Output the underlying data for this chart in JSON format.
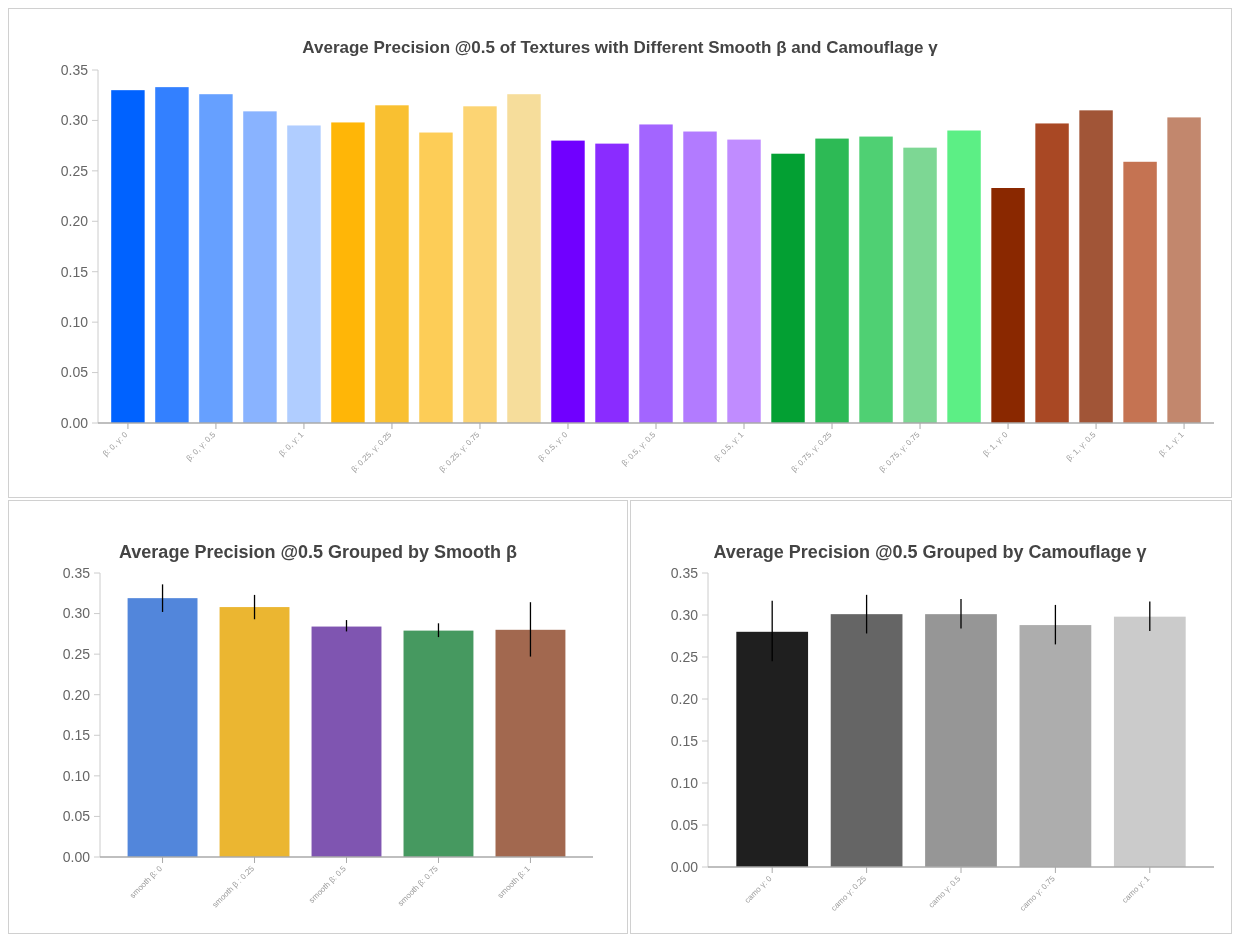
{
  "chart_data": [
    {
      "type": "bar",
      "title": "Average Precision @0.5 of Textures with Different Smooth β and Camouflage γ",
      "categories": [
        "β: 0, γ: 0",
        null,
        "β: 0, γ: 0.5",
        null,
        "β: 0, γ: 1",
        null,
        "β: 0.25, γ: 0.25",
        null,
        "β: 0.25, γ: 0.75",
        null,
        "β: 0.5, γ: 0",
        null,
        "β: 0.5, γ: 0.5",
        null,
        "β: 0.5, γ: 1",
        null,
        "β: 0.75, γ: 0.25",
        null,
        "β: 0.75, γ: 0.75",
        null,
        "β: 1, γ: 0",
        null,
        "β: 1, γ: 0.5",
        null,
        "β: 1, γ: 1"
      ],
      "values": [
        0.33,
        0.333,
        0.326,
        0.309,
        0.295,
        0.298,
        0.315,
        0.288,
        0.314,
        0.326,
        0.28,
        0.277,
        0.296,
        0.289,
        0.281,
        0.267,
        0.282,
        0.284,
        0.273,
        0.29,
        0.233,
        0.297,
        0.31,
        0.259,
        0.303
      ],
      "colors": [
        "#0062ff",
        "#3380ff",
        "#66a0ff",
        "#89b3ff",
        "#b0cdff",
        "#ffb607",
        "#f9c031",
        "#fdcd57",
        "#fcd473",
        "#f6dd9b",
        "#7000ff",
        "#8a2cff",
        "#a365ff",
        "#b27bff",
        "#c08cff",
        "#03a033",
        "#2dba55",
        "#4fd073",
        "#7dd794",
        "#5cef85",
        "#8a2800",
        "#a94824",
        "#a15537",
        "#c57352",
        "#c2876d"
      ],
      "ylim": [
        0,
        0.35
      ],
      "yticks": [
        {
          "value": 0,
          "label": "0.00"
        },
        {
          "value": 0.05,
          "label": "0.05"
        },
        {
          "value": 0.1,
          "label": "0.10"
        },
        {
          "value": 0.15,
          "label": "0.15"
        },
        {
          "value": 0.2,
          "label": "0.20"
        },
        {
          "value": 0.25,
          "label": "0.25"
        },
        {
          "value": 0.3,
          "label": "0.30"
        },
        {
          "value": 0.35,
          "label": "0.35"
        }
      ]
    },
    {
      "type": "bar",
      "title": "Average Precision @0.5 Grouped by Smooth β",
      "categories": [
        "smooth β: 0",
        "smooth β : 0.25",
        "smooth β: 0.5",
        "smooth β: 0.75",
        "smooth β: 1"
      ],
      "values": [
        0.319,
        0.308,
        0.284,
        0.279,
        0.28
      ],
      "errors": [
        [
          0.302,
          0.336
        ],
        [
          0.293,
          0.323
        ],
        [
          0.278,
          0.292
        ],
        [
          0.271,
          0.288
        ],
        [
          0.247,
          0.314
        ]
      ],
      "colors": [
        "#5286db",
        "#ebb631",
        "#7f55b1",
        "#469960",
        "#a2684f"
      ],
      "ylim": [
        0,
        0.35
      ],
      "yticks": [
        {
          "value": 0,
          "label": "0.00"
        },
        {
          "value": 0.05,
          "label": "0.05"
        },
        {
          "value": 0.1,
          "label": "0.10"
        },
        {
          "value": 0.15,
          "label": "0.15"
        },
        {
          "value": 0.2,
          "label": "0.20"
        },
        {
          "value": 0.25,
          "label": "0.25"
        },
        {
          "value": 0.3,
          "label": "0.30"
        },
        {
          "value": 0.35,
          "label": "0.35"
        }
      ]
    },
    {
      "type": "bar",
      "title": "Average Precision @0.5 Grouped by Camouflage γ",
      "categories": [
        "camo γ: 0",
        "camo γ: 0.25",
        "camo γ: 0.5",
        "camo γ: 0.75",
        "camo γ: 1"
      ],
      "values": [
        0.28,
        0.301,
        0.301,
        0.288,
        0.298
      ],
      "errors": [
        [
          0.245,
          0.317
        ],
        [
          0.278,
          0.324
        ],
        [
          0.284,
          0.319
        ],
        [
          0.265,
          0.312
        ],
        [
          0.281,
          0.316
        ]
      ],
      "colors": [
        "#1f1f1f",
        "#656565",
        "#969696",
        "#adadad",
        "#cbcbcb"
      ],
      "ylim": [
        0,
        0.35
      ],
      "yticks": [
        {
          "value": 0,
          "label": "0.00"
        },
        {
          "value": 0.05,
          "label": "0.05"
        },
        {
          "value": 0.1,
          "label": "0.10"
        },
        {
          "value": 0.15,
          "label": "0.15"
        },
        {
          "value": 0.2,
          "label": "0.20"
        },
        {
          "value": 0.25,
          "label": "0.25"
        },
        {
          "value": 0.3,
          "label": "0.30"
        },
        {
          "value": 0.35,
          "label": "0.35"
        }
      ]
    }
  ]
}
